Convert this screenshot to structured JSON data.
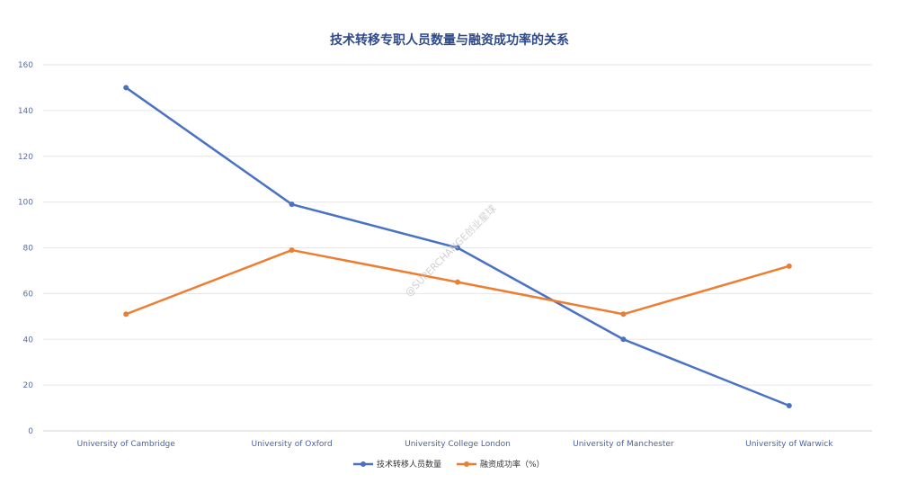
{
  "chart_data": {
    "type": "line",
    "title": "技术转移专职人员数量与融资成功率的关系",
    "categories": [
      "University of Cambridge",
      "University of Oxford",
      "University College London",
      "University of Manchester",
      "University of Warwick"
    ],
    "ylim": [
      0,
      160
    ],
    "yticks": [
      0,
      20,
      40,
      60,
      80,
      100,
      120,
      140,
      160
    ],
    "grid": true,
    "legend_position": "bottom",
    "series": [
      {
        "name": "技术转移人员数量",
        "color": "#4a72c4",
        "values": [
          150,
          99,
          80,
          40,
          11
        ]
      },
      {
        "name": "融资成功率（%）",
        "color": "#ed7d31",
        "values": [
          51,
          79,
          65,
          51,
          72
        ]
      }
    ]
  },
  "watermark": "@SUPERCHANGE创业星球"
}
